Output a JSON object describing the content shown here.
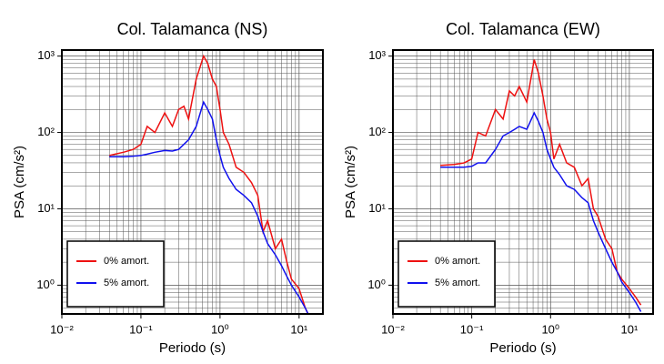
{
  "chart_data": [
    {
      "type": "line",
      "title": "Col. Talamanca (NS)",
      "x_label": "Periodo (s)",
      "y_label": "PSA (cm/s²)",
      "x": [
        0.04,
        0.06,
        0.08,
        0.1,
        0.12,
        0.15,
        0.2,
        0.25,
        0.3,
        0.35,
        0.4,
        0.5,
        0.62,
        0.7,
        0.8,
        0.9,
        1.0,
        1.1,
        1.3,
        1.6,
        2,
        2.5,
        3,
        3.5,
        4,
        5,
        6,
        7,
        8,
        10,
        12,
        13
      ],
      "series": [
        {
          "name": "0% amort.",
          "color": "#ee1111",
          "values": [
            50,
            55,
            60,
            70,
            120,
            100,
            180,
            120,
            200,
            220,
            150,
            500,
            1000,
            800,
            500,
            400,
            200,
            100,
            70,
            35,
            30,
            22,
            15,
            5,
            7,
            3,
            4,
            2,
            1.2,
            0.9,
            0.5,
            0.42
          ]
        },
        {
          "name": "5% amort.",
          "color": "#1111ee",
          "values": [
            48,
            48,
            49,
            50,
            52,
            55,
            58,
            57,
            60,
            70,
            80,
            120,
            250,
            200,
            150,
            80,
            50,
            35,
            25,
            18,
            15,
            12,
            8,
            5,
            3.5,
            2.5,
            1.8,
            1.3,
            1,
            0.7,
            0.5,
            0.42
          ]
        }
      ],
      "log_x": true,
      "log_y": true,
      "grid": true,
      "legend": "lower left",
      "xlim": [
        0.01,
        20
      ],
      "ylim": [
        0.42,
        1200
      ],
      "xticks": [
        {
          "value": 0.01,
          "label": "10⁻²"
        },
        {
          "value": 0.1,
          "label": "10⁻¹"
        },
        {
          "value": 1,
          "label": "10⁰"
        },
        {
          "value": 10,
          "label": "10¹"
        }
      ],
      "yticks": [
        {
          "value": 1,
          "label": "10⁰"
        },
        {
          "value": 10,
          "label": "10¹"
        },
        {
          "value": 100,
          "label": "10²"
        },
        {
          "value": 1000,
          "label": "10³"
        }
      ]
    },
    {
      "type": "line",
      "title": "Col. Talamanca (EW)",
      "x_label": "Periodo (s)",
      "y_label": "PSA (cm/s²)",
      "x": [
        0.04,
        0.06,
        0.08,
        0.1,
        0.12,
        0.15,
        0.2,
        0.25,
        0.3,
        0.35,
        0.4,
        0.5,
        0.62,
        0.7,
        0.8,
        0.9,
        1.0,
        1.1,
        1.3,
        1.6,
        2,
        2.5,
        3,
        3.5,
        4,
        5,
        6,
        7,
        8,
        10,
        12,
        14
      ],
      "series": [
        {
          "name": "0% amort.",
          "color": "#ee1111",
          "values": [
            37,
            38,
            40,
            45,
            100,
            90,
            200,
            150,
            350,
            300,
            400,
            250,
            900,
            600,
            300,
            150,
            100,
            45,
            70,
            40,
            35,
            20,
            25,
            10,
            8,
            4,
            3,
            1.5,
            1.2,
            0.9,
            0.7,
            0.55
          ]
        },
        {
          "name": "5% amort.",
          "color": "#1111ee",
          "values": [
            35,
            35,
            35,
            36,
            40,
            40,
            60,
            90,
            100,
            110,
            120,
            110,
            180,
            140,
            100,
            60,
            45,
            35,
            28,
            20,
            18,
            14,
            12,
            7,
            5,
            3,
            2,
            1.5,
            1.1,
            0.8,
            0.6,
            0.45
          ]
        }
      ],
      "log_x": true,
      "log_y": true,
      "grid": true,
      "legend": "lower left",
      "xlim": [
        0.01,
        20
      ],
      "ylim": [
        0.42,
        1200
      ],
      "xticks": [
        {
          "value": 0.01,
          "label": "10⁻²"
        },
        {
          "value": 0.1,
          "label": "10⁻¹"
        },
        {
          "value": 1,
          "label": "10⁰"
        },
        {
          "value": 10,
          "label": "10¹"
        }
      ],
      "yticks": [
        {
          "value": 1,
          "label": "10⁰"
        },
        {
          "value": 10,
          "label": "10¹"
        },
        {
          "value": 100,
          "label": "10²"
        },
        {
          "value": 1000,
          "label": "10³"
        }
      ]
    }
  ]
}
